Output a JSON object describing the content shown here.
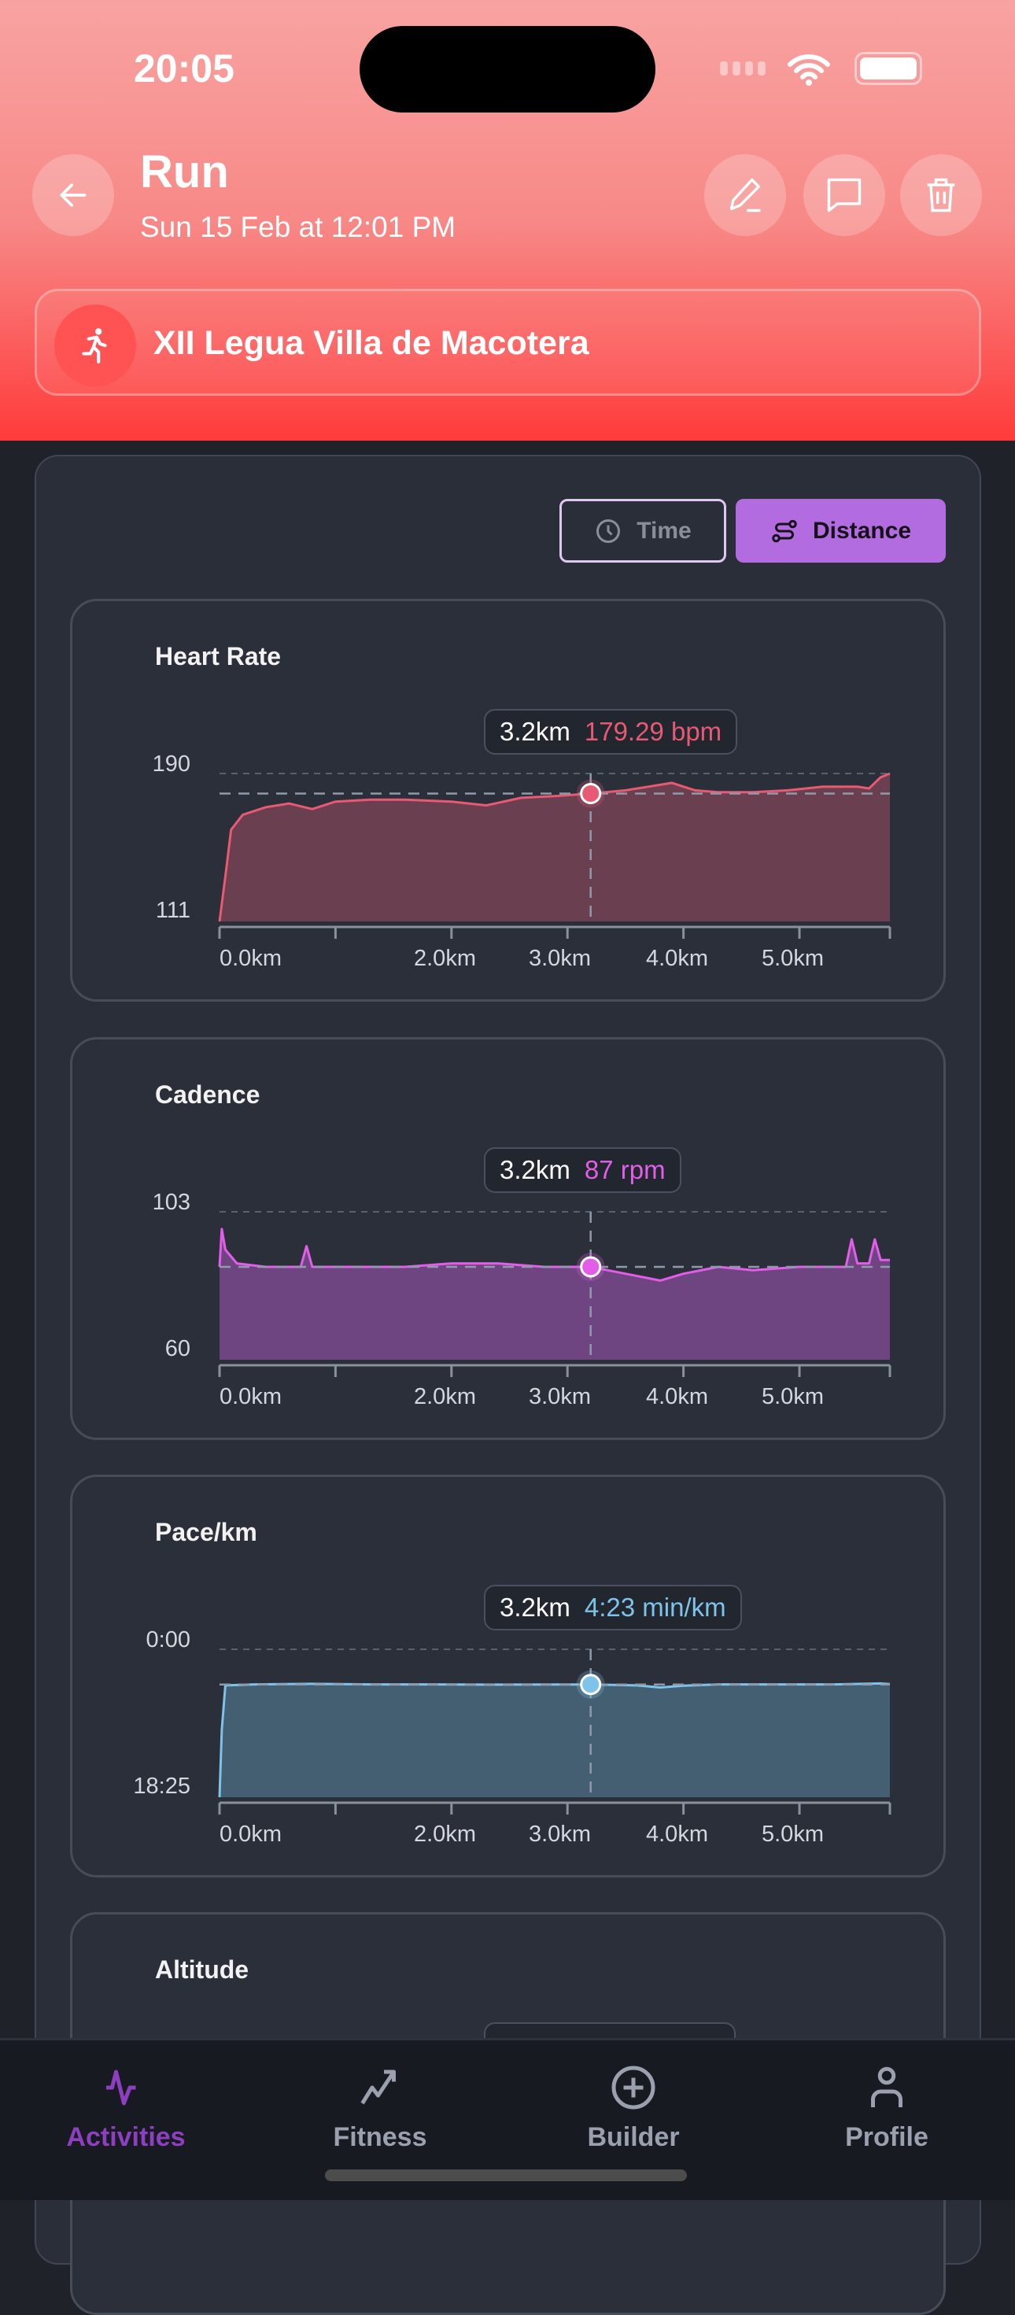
{
  "status_bar": {
    "time": "20:05"
  },
  "header": {
    "title": "Run",
    "subtitle": "Sun 15 Feb at 12:01 PM",
    "event_name": "XII Legua Villa de Macotera",
    "icons": [
      "back-arrow-icon",
      "pencil-icon",
      "comment-icon",
      "trash-icon",
      "running-person-icon"
    ]
  },
  "toggle": {
    "time_label": "Time",
    "distance_label": "Distance",
    "selected": "Distance"
  },
  "colors": {
    "accent": "#b36ce0",
    "header_start": "#f8a3a2",
    "header_end": "#ff3b3b",
    "heart_rate": "#e85a73",
    "cadence": "#e35ee8",
    "pace": "#7ec3ea"
  },
  "charts": [
    {
      "title": "Heart Rate",
      "tooltip_x": "3.2km",
      "tooltip_value": "179.29 bpm",
      "y_top_label": "190",
      "y_bottom_label": "111"
    },
    {
      "title": "Cadence",
      "tooltip_x": "3.2km",
      "tooltip_value": "87 rpm",
      "y_top_label": "103",
      "y_bottom_label": "60"
    },
    {
      "title": "Pace/km",
      "tooltip_x": "3.2km",
      "tooltip_value": "4:23 min/km",
      "y_top_label": "0:00",
      "y_bottom_label": "18:25"
    },
    {
      "title": "Altitude"
    }
  ],
  "chart_data": [
    {
      "type": "area",
      "title": "Heart Rate",
      "unit": "bpm",
      "xlabel": "",
      "ylabel": "",
      "x_ticks": [
        "0.0km",
        "2.0km",
        "3.0km",
        "4.0km",
        "5.0km"
      ],
      "xlim": [
        0,
        5.78
      ],
      "ylim": [
        111,
        190
      ],
      "cursor_x": 3.2,
      "cursor_y": 179.29,
      "x": [
        0,
        0.05,
        0.1,
        0.2,
        0.4,
        0.6,
        0.8,
        1.0,
        1.3,
        1.6,
        2.0,
        2.3,
        2.6,
        2.9,
        3.2,
        3.5,
        3.7,
        3.9,
        4.1,
        4.3,
        4.6,
        4.9,
        5.2,
        5.5,
        5.6,
        5.7,
        5.78
      ],
      "y": [
        111,
        135,
        160,
        168,
        172,
        174,
        171,
        175,
        176,
        176,
        175,
        173,
        177,
        178,
        179.3,
        181,
        183,
        185,
        181,
        180,
        180,
        181,
        183,
        183,
        182,
        188,
        190
      ]
    },
    {
      "type": "area",
      "title": "Cadence",
      "unit": "rpm",
      "xlabel": "",
      "ylabel": "",
      "x_ticks": [
        "0.0km",
        "2.0km",
        "3.0km",
        "4.0km",
        "5.0km"
      ],
      "xlim": [
        0,
        5.78
      ],
      "ylim": [
        60,
        103
      ],
      "cursor_x": 3.2,
      "cursor_y": 87,
      "x": [
        0,
        0.02,
        0.05,
        0.15,
        0.4,
        0.7,
        0.75,
        0.8,
        1.2,
        1.6,
        2.0,
        2.4,
        2.8,
        3.2,
        3.5,
        3.8,
        4.0,
        4.3,
        4.6,
        5.0,
        5.3,
        5.4,
        5.45,
        5.5,
        5.6,
        5.65,
        5.7,
        5.78
      ],
      "y": [
        87,
        98,
        92,
        88,
        87,
        87,
        93,
        87,
        87,
        87,
        88,
        88,
        87,
        87,
        85,
        83,
        85,
        87,
        86,
        87,
        87,
        87,
        95,
        88,
        88,
        95,
        89,
        89
      ]
    },
    {
      "type": "area",
      "title": "Pace/km",
      "unit": "min/km",
      "xlabel": "",
      "ylabel": "",
      "x_ticks": [
        "0.0km",
        "2.0km",
        "3.0km",
        "4.0km",
        "5.0km"
      ],
      "xlim": [
        0,
        5.78
      ],
      "ylim": [
        "18:25",
        "0:00"
      ],
      "y_inverted": true,
      "cursor_x": 3.2,
      "cursor_y": "4:23",
      "x": [
        0,
        0.02,
        0.05,
        0.3,
        0.8,
        1.3,
        1.8,
        2.3,
        2.8,
        3.2,
        3.6,
        3.8,
        4.0,
        4.3,
        4.8,
        5.3,
        5.7,
        5.78
      ],
      "y": [
        1105,
        600,
        270,
        262,
        258,
        262,
        262,
        264,
        263,
        263,
        270,
        285,
        272,
        262,
        262,
        262,
        255,
        260
      ]
    }
  ],
  "nav": {
    "items": [
      {
        "label": "Activities",
        "icon": "activity-pulse-icon",
        "active": true
      },
      {
        "label": "Fitness",
        "icon": "trending-up-icon"
      },
      {
        "label": "Builder",
        "icon": "plus-circle-icon"
      },
      {
        "label": "Profile",
        "icon": "user-icon"
      }
    ],
    "active_color": "#8e3fc0"
  }
}
